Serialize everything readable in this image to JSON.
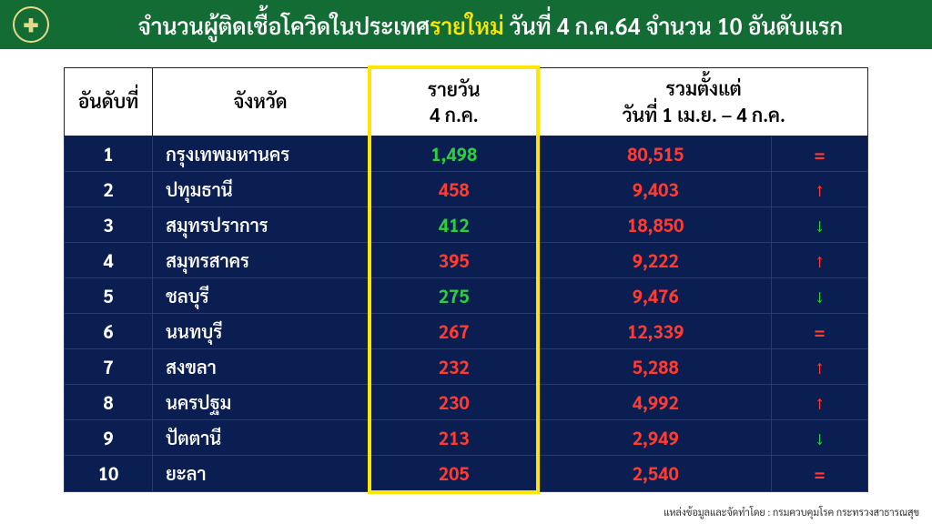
{
  "header": {
    "title_pre": "จำนวนผู้ติดเชื้อโควิดในประเทศ",
    "title_accent": "รายใหม่",
    "title_post": " วันที่ 4 ก.ค.64 จำนวน 10 อันดับแรก"
  },
  "table": {
    "type": "table",
    "columns": {
      "rank": "อันดับที่",
      "province": "จังหวัด",
      "daily_l1": "รายวัน",
      "daily_l2": "4 ก.ค.",
      "cum_l1": "รวมตั้งแต่",
      "cum_l2": "วันที่ 1 เม.ย. – 4 ก.ค.",
      "trend": ""
    },
    "colors": {
      "header_bg": "#ffffff",
      "body_bg": "#0b1e52",
      "highlight_border": "#ffe600",
      "green": "#2ecc40",
      "red": "#ff3b30",
      "title_bg": "#126c34"
    },
    "rows": [
      {
        "rank": "1",
        "province": "กรุงเทพมหานคร",
        "daily": "1,498",
        "daily_color": "green",
        "cum": "80,515",
        "trend": "equal"
      },
      {
        "rank": "2",
        "province": "ปทุมธานี",
        "daily": "458",
        "daily_color": "red",
        "cum": "9,403",
        "trend": "up"
      },
      {
        "rank": "3",
        "province": "สมุทรปราการ",
        "daily": "412",
        "daily_color": "green",
        "cum": "18,850",
        "trend": "down"
      },
      {
        "rank": "4",
        "province": "สมุทรสาคร",
        "daily": "395",
        "daily_color": "red",
        "cum": "9,222",
        "trend": "up"
      },
      {
        "rank": "5",
        "province": "ชลบุรี",
        "daily": "275",
        "daily_color": "green",
        "cum": "9,476",
        "trend": "down"
      },
      {
        "rank": "6",
        "province": "นนทบุรี",
        "daily": "267",
        "daily_color": "red",
        "cum": "12,339",
        "trend": "equal"
      },
      {
        "rank": "7",
        "province": "สงขลา",
        "daily": "232",
        "daily_color": "red",
        "cum": "5,288",
        "trend": "up"
      },
      {
        "rank": "8",
        "province": "นครปฐม",
        "daily": "230",
        "daily_color": "red",
        "cum": "4,992",
        "trend": "up"
      },
      {
        "rank": "9",
        "province": "ปัตตานี",
        "daily": "213",
        "daily_color": "red",
        "cum": "2,949",
        "trend": "down"
      },
      {
        "rank": "10",
        "province": "ยะลา",
        "daily": "205",
        "daily_color": "red",
        "cum": "2,540",
        "trend": "equal"
      }
    ]
  },
  "footer": "แหล่งข้อมูลและจัดทำโดย : กรมควบคุมโรค กระทรวงสาธารณสุข",
  "trend_glyphs": {
    "up": "↑",
    "down": "↓",
    "equal": "="
  },
  "trend_colors": {
    "up": "#ff3b30",
    "down": "#2ecc40",
    "equal": "#ff3b30"
  }
}
